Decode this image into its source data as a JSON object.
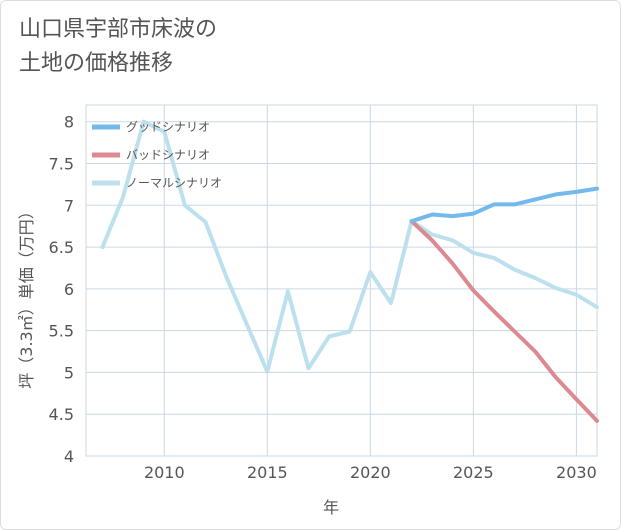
{
  "title": {
    "line1": "山口県宇部市床波の",
    "line2": "土地の価格推移"
  },
  "chart_data": {
    "type": "line",
    "xlabel": "年",
    "ylabel": "坪（3.3㎡）単価（万円）",
    "xlim": [
      2006.2,
      2031
    ],
    "ylim": [
      4,
      8.2
    ],
    "x_ticks": [
      2010,
      2015,
      2020,
      2025,
      2030
    ],
    "y_ticks": [
      4,
      4.5,
      5,
      5.5,
      6,
      6.5,
      7,
      7.5,
      8
    ],
    "grid": true,
    "legend_position": "top-left",
    "series": [
      {
        "name": "グッドシナリオ",
        "color": "#74b9ec",
        "points": [
          [
            2022,
            6.81
          ],
          [
            2023,
            6.89
          ],
          [
            2024,
            6.87
          ],
          [
            2025,
            6.9
          ],
          [
            2026,
            7.01
          ],
          [
            2027,
            7.01
          ],
          [
            2028,
            7.07
          ],
          [
            2029,
            7.13
          ],
          [
            2030,
            7.16
          ],
          [
            2031,
            7.2
          ]
        ]
      },
      {
        "name": "バッドシナリオ",
        "color": "#dc8990",
        "points": [
          [
            2022,
            6.81
          ],
          [
            2023,
            6.58
          ],
          [
            2024,
            6.3
          ],
          [
            2025,
            5.98
          ],
          [
            2026,
            5.73
          ],
          [
            2027,
            5.49
          ],
          [
            2028,
            5.25
          ],
          [
            2029,
            4.94
          ],
          [
            2030,
            4.68
          ],
          [
            2031,
            4.42
          ]
        ]
      },
      {
        "name": "ノーマルシナリオ",
        "color": "#bde0ee",
        "points": [
          [
            2007,
            6.5
          ],
          [
            2008,
            7.1
          ],
          [
            2009,
            8.0
          ],
          [
            2010,
            7.88
          ],
          [
            2011,
            7.0
          ],
          [
            2012,
            6.8
          ],
          [
            2013,
            6.15
          ],
          [
            2014,
            5.58
          ],
          [
            2015,
            5.01
          ],
          [
            2016,
            5.97
          ],
          [
            2017,
            5.05
          ],
          [
            2018,
            5.43
          ],
          [
            2019,
            5.49
          ],
          [
            2020,
            6.2
          ],
          [
            2021,
            5.83
          ],
          [
            2022,
            6.81
          ],
          [
            2023,
            6.65
          ],
          [
            2024,
            6.58
          ],
          [
            2025,
            6.43
          ],
          [
            2026,
            6.37
          ],
          [
            2027,
            6.23
          ],
          [
            2028,
            6.13
          ],
          [
            2029,
            6.01
          ],
          [
            2030,
            5.93
          ],
          [
            2031,
            5.78
          ]
        ]
      }
    ]
  }
}
